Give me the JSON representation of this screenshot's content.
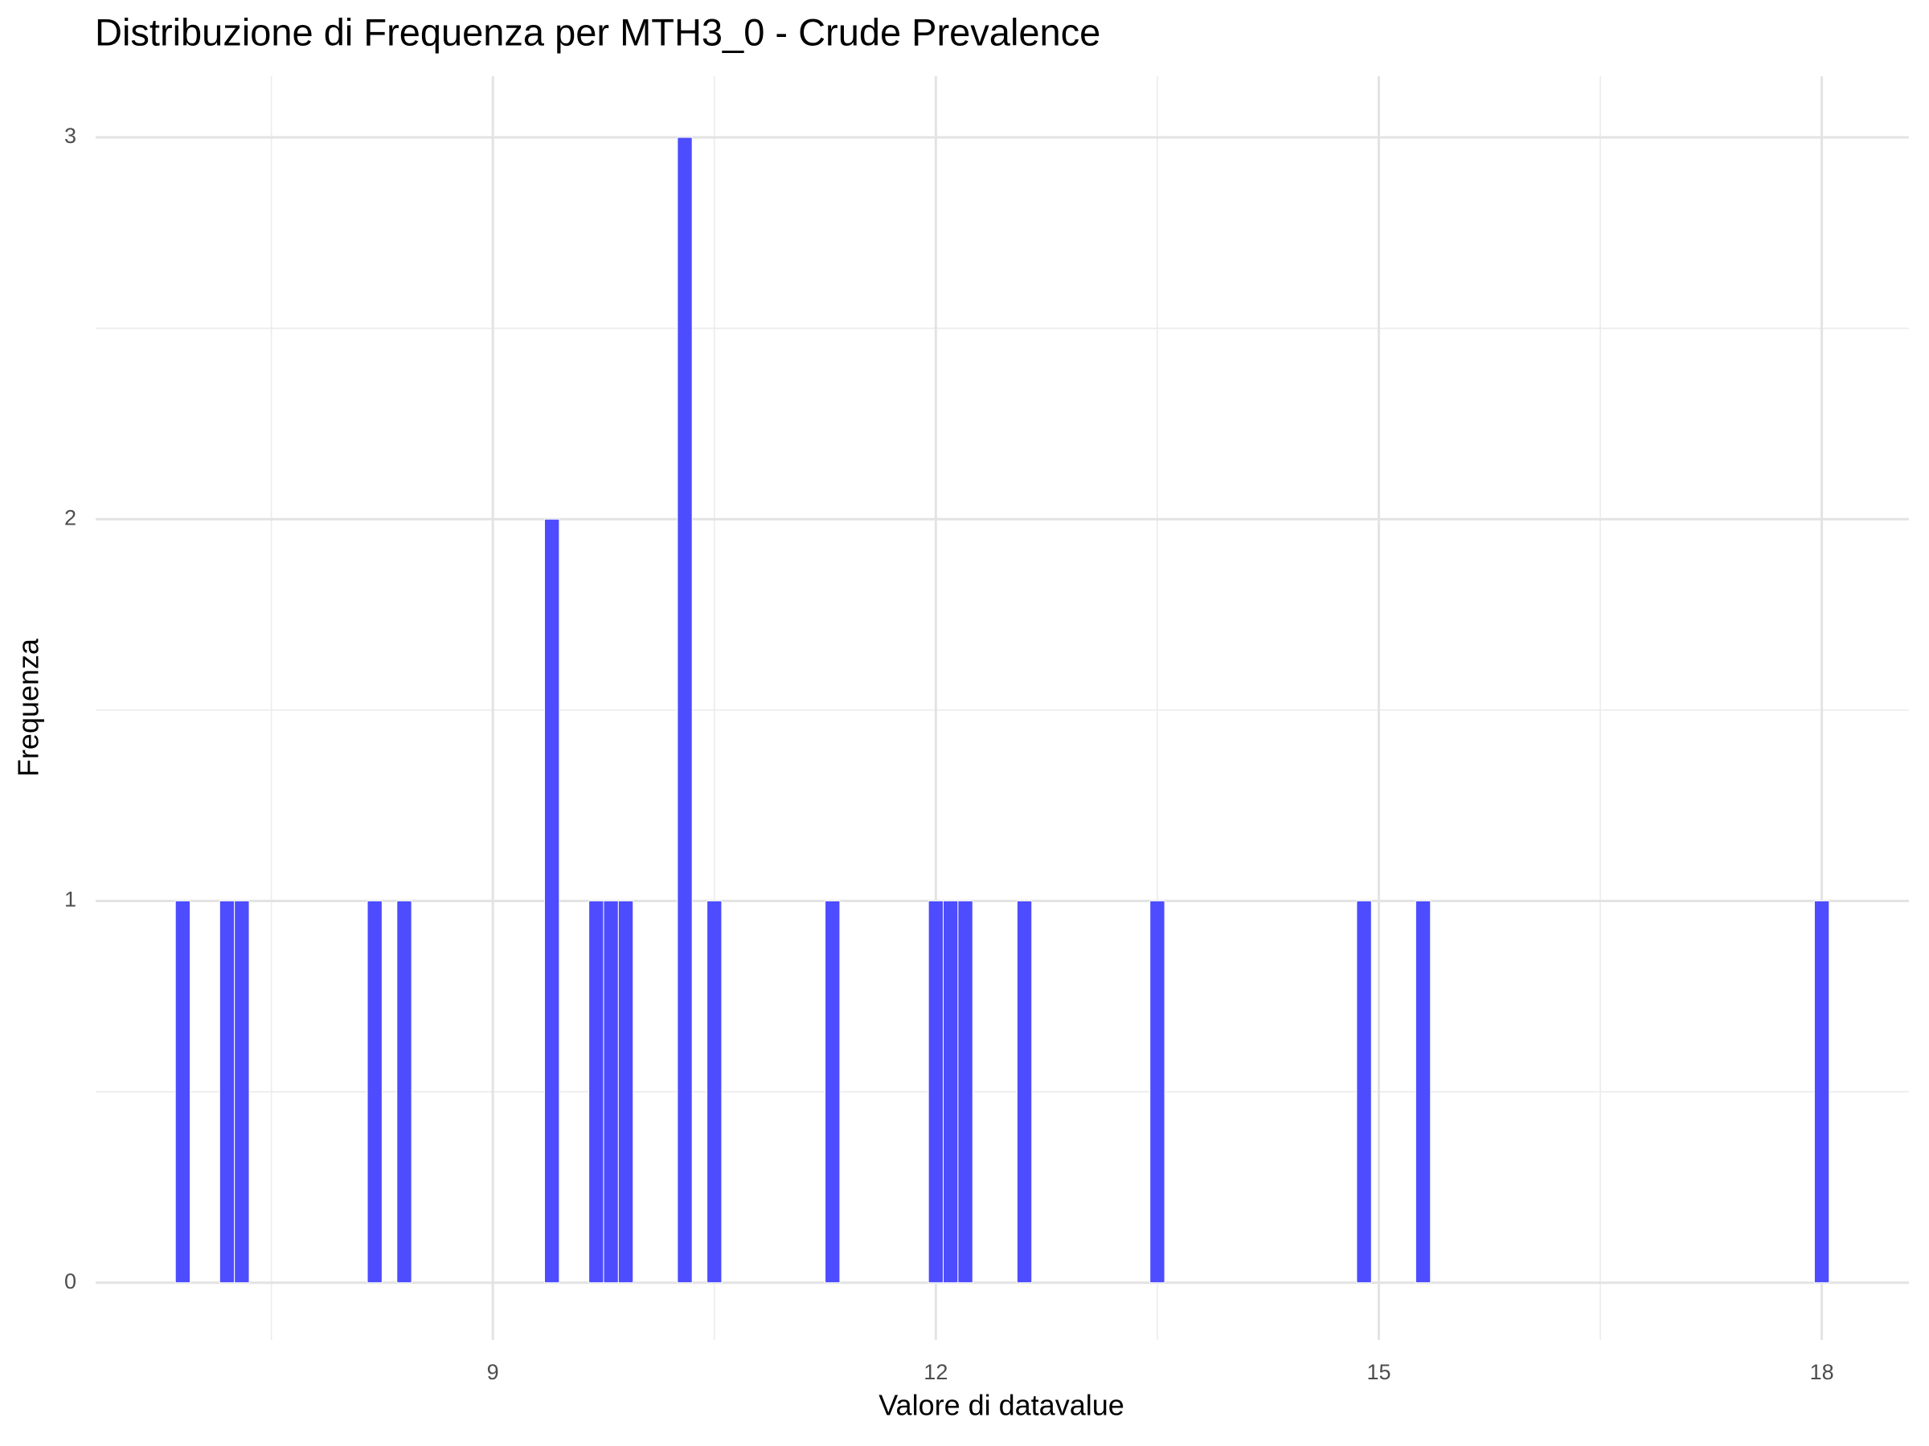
{
  "chart_data": {
    "type": "histogram",
    "title": "Distribuzione di Frequenza per MTH3_0 - Crude Prevalence",
    "x_label": "Valore di datavalue",
    "y_label": "Frequenza",
    "color": "#4d4dff",
    "bins": [
      6.85,
      6.95,
      7.05,
      7.15,
      7.25,
      7.35,
      7.45,
      7.55,
      7.65,
      7.75,
      7.85,
      7.95,
      8.05,
      8.15,
      8.25,
      8.35,
      8.45,
      8.55,
      8.65,
      8.75,
      8.85,
      8.95,
      9.05,
      9.15,
      9.25,
      9.35,
      9.45,
      9.55,
      9.65,
      9.75,
      9.85,
      9.95,
      10.05,
      10.15,
      10.25,
      10.35,
      10.45,
      10.55,
      10.65,
      10.75,
      10.85,
      10.95,
      11.05,
      11.15,
      11.25,
      11.35,
      11.45,
      11.55,
      11.65,
      11.75,
      11.85,
      11.95,
      12.05,
      12.15,
      12.25,
      12.35,
      12.45,
      12.55,
      12.65,
      12.75,
      12.85,
      12.95,
      13.05,
      13.15,
      13.25,
      13.35,
      13.45,
      13.55,
      13.65,
      13.75,
      13.85,
      13.95,
      14.05,
      14.15,
      14.25,
      14.35,
      14.45,
      14.55,
      14.65,
      14.75,
      14.85,
      14.95,
      15.05,
      15.15,
      15.25,
      15.35,
      15.45,
      15.55,
      15.65,
      15.75,
      15.85,
      15.95,
      16.05,
      16.15,
      16.25,
      16.35,
      16.45,
      16.55,
      16.65,
      16.75,
      16.85,
      16.95,
      17.05,
      17.15,
      17.25,
      17.35,
      17.45,
      17.55,
      17.65,
      17.75,
      17.85,
      17.95,
      18.05
    ],
    "values": [
      1,
      0,
      0,
      1,
      1,
      0,
      0,
      0,
      0,
      0,
      0,
      0,
      0,
      1,
      0,
      1,
      0,
      0,
      0,
      0,
      0,
      0,
      0,
      0,
      0,
      2,
      0,
      0,
      1,
      1,
      1,
      0,
      0,
      0,
      3,
      0,
      1,
      0,
      0,
      0,
      0,
      0,
      0,
      0,
      1,
      0,
      0,
      0,
      0,
      0,
      0,
      1,
      1,
      1,
      0,
      0,
      0,
      1,
      0,
      0,
      0,
      0,
      0,
      0,
      0,
      0,
      1,
      0,
      0,
      0,
      0,
      0,
      0,
      0,
      0,
      0,
      0,
      0,
      0,
      0,
      1,
      0,
      0,
      0,
      1,
      0,
      0,
      0,
      0,
      0,
      0,
      0,
      0,
      0,
      0,
      0,
      0,
      0,
      0,
      0,
      0,
      0,
      0,
      0,
      0,
      0,
      0,
      0,
      0,
      0,
      0,
      1
    ],
    "xlim": [
      6.31,
      18.59
    ],
    "ylim": [
      -0.15,
      3.16
    ],
    "xticks": [
      9,
      12,
      15,
      18
    ],
    "yticks": [
      0,
      1,
      2,
      3
    ],
    "x_minor_grid": [
      7.5,
      10.5,
      13.5,
      16.5
    ],
    "y_minor_grid": [
      0.5,
      1.5,
      2.5
    ],
    "grid": true
  }
}
